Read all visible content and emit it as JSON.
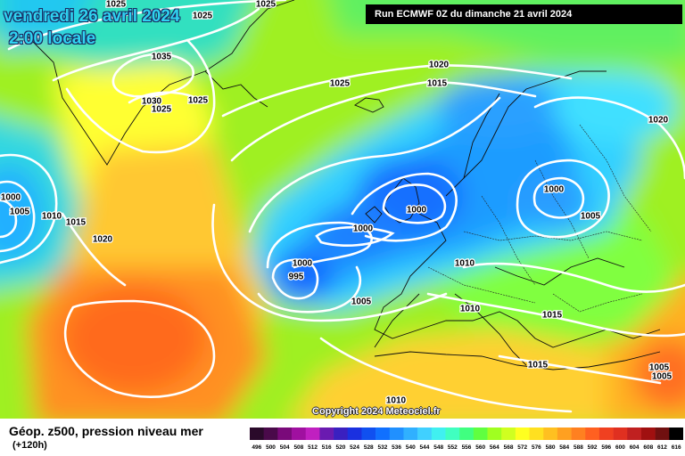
{
  "map": {
    "title": "vendredi 26 avril 2024",
    "local_time": "2:00 locale",
    "run": "Run ECMWF 0Z du dimanche 21 avril 2024",
    "copyright": "Copyright 2024 Meteociel.fr",
    "field_label": "Géop. z500, pression niveau mer",
    "lead_time": "(+120h)"
  },
  "isobar_labels": [
    "1025",
    "1025",
    "1025",
    "1035",
    "1030",
    "1025",
    "1025",
    "1025",
    "1020",
    "1015",
    "1020",
    "1000",
    "1005",
    "1010",
    "1015",
    "1020",
    "1000",
    "1000",
    "1000",
    "1005",
    "995",
    "1000",
    "1005",
    "1010",
    "1010",
    "1015",
    "1015",
    "1005",
    "1005",
    "1010"
  ],
  "colorbar": {
    "ticks": [
      "496",
      "500",
      "504",
      "508",
      "512",
      "516",
      "520",
      "524",
      "528",
      "532",
      "536",
      "540",
      "544",
      "548",
      "552",
      "556",
      "560",
      "564",
      "568",
      "572",
      "576",
      "580",
      "584",
      "588",
      "592",
      "596",
      "600",
      "604",
      "608",
      "612",
      "616"
    ],
    "colors": [
      "#2a0a2a",
      "#4a0a4a",
      "#7a0a7a",
      "#a010a0",
      "#c020c0",
      "#6a1ab0",
      "#3a20c0",
      "#1a30e0",
      "#1050f0",
      "#1070ff",
      "#2090ff",
      "#30b0ff",
      "#40d0ff",
      "#40f0f0",
      "#40ffc0",
      "#40ff80",
      "#60ff40",
      "#a0ff20",
      "#d0ff20",
      "#ffff20",
      "#ffe020",
      "#ffc020",
      "#ffa020",
      "#ff8020",
      "#ff6020",
      "#f04020",
      "#e03020",
      "#c02020",
      "#a01010",
      "#701010",
      "#000000"
    ]
  }
}
